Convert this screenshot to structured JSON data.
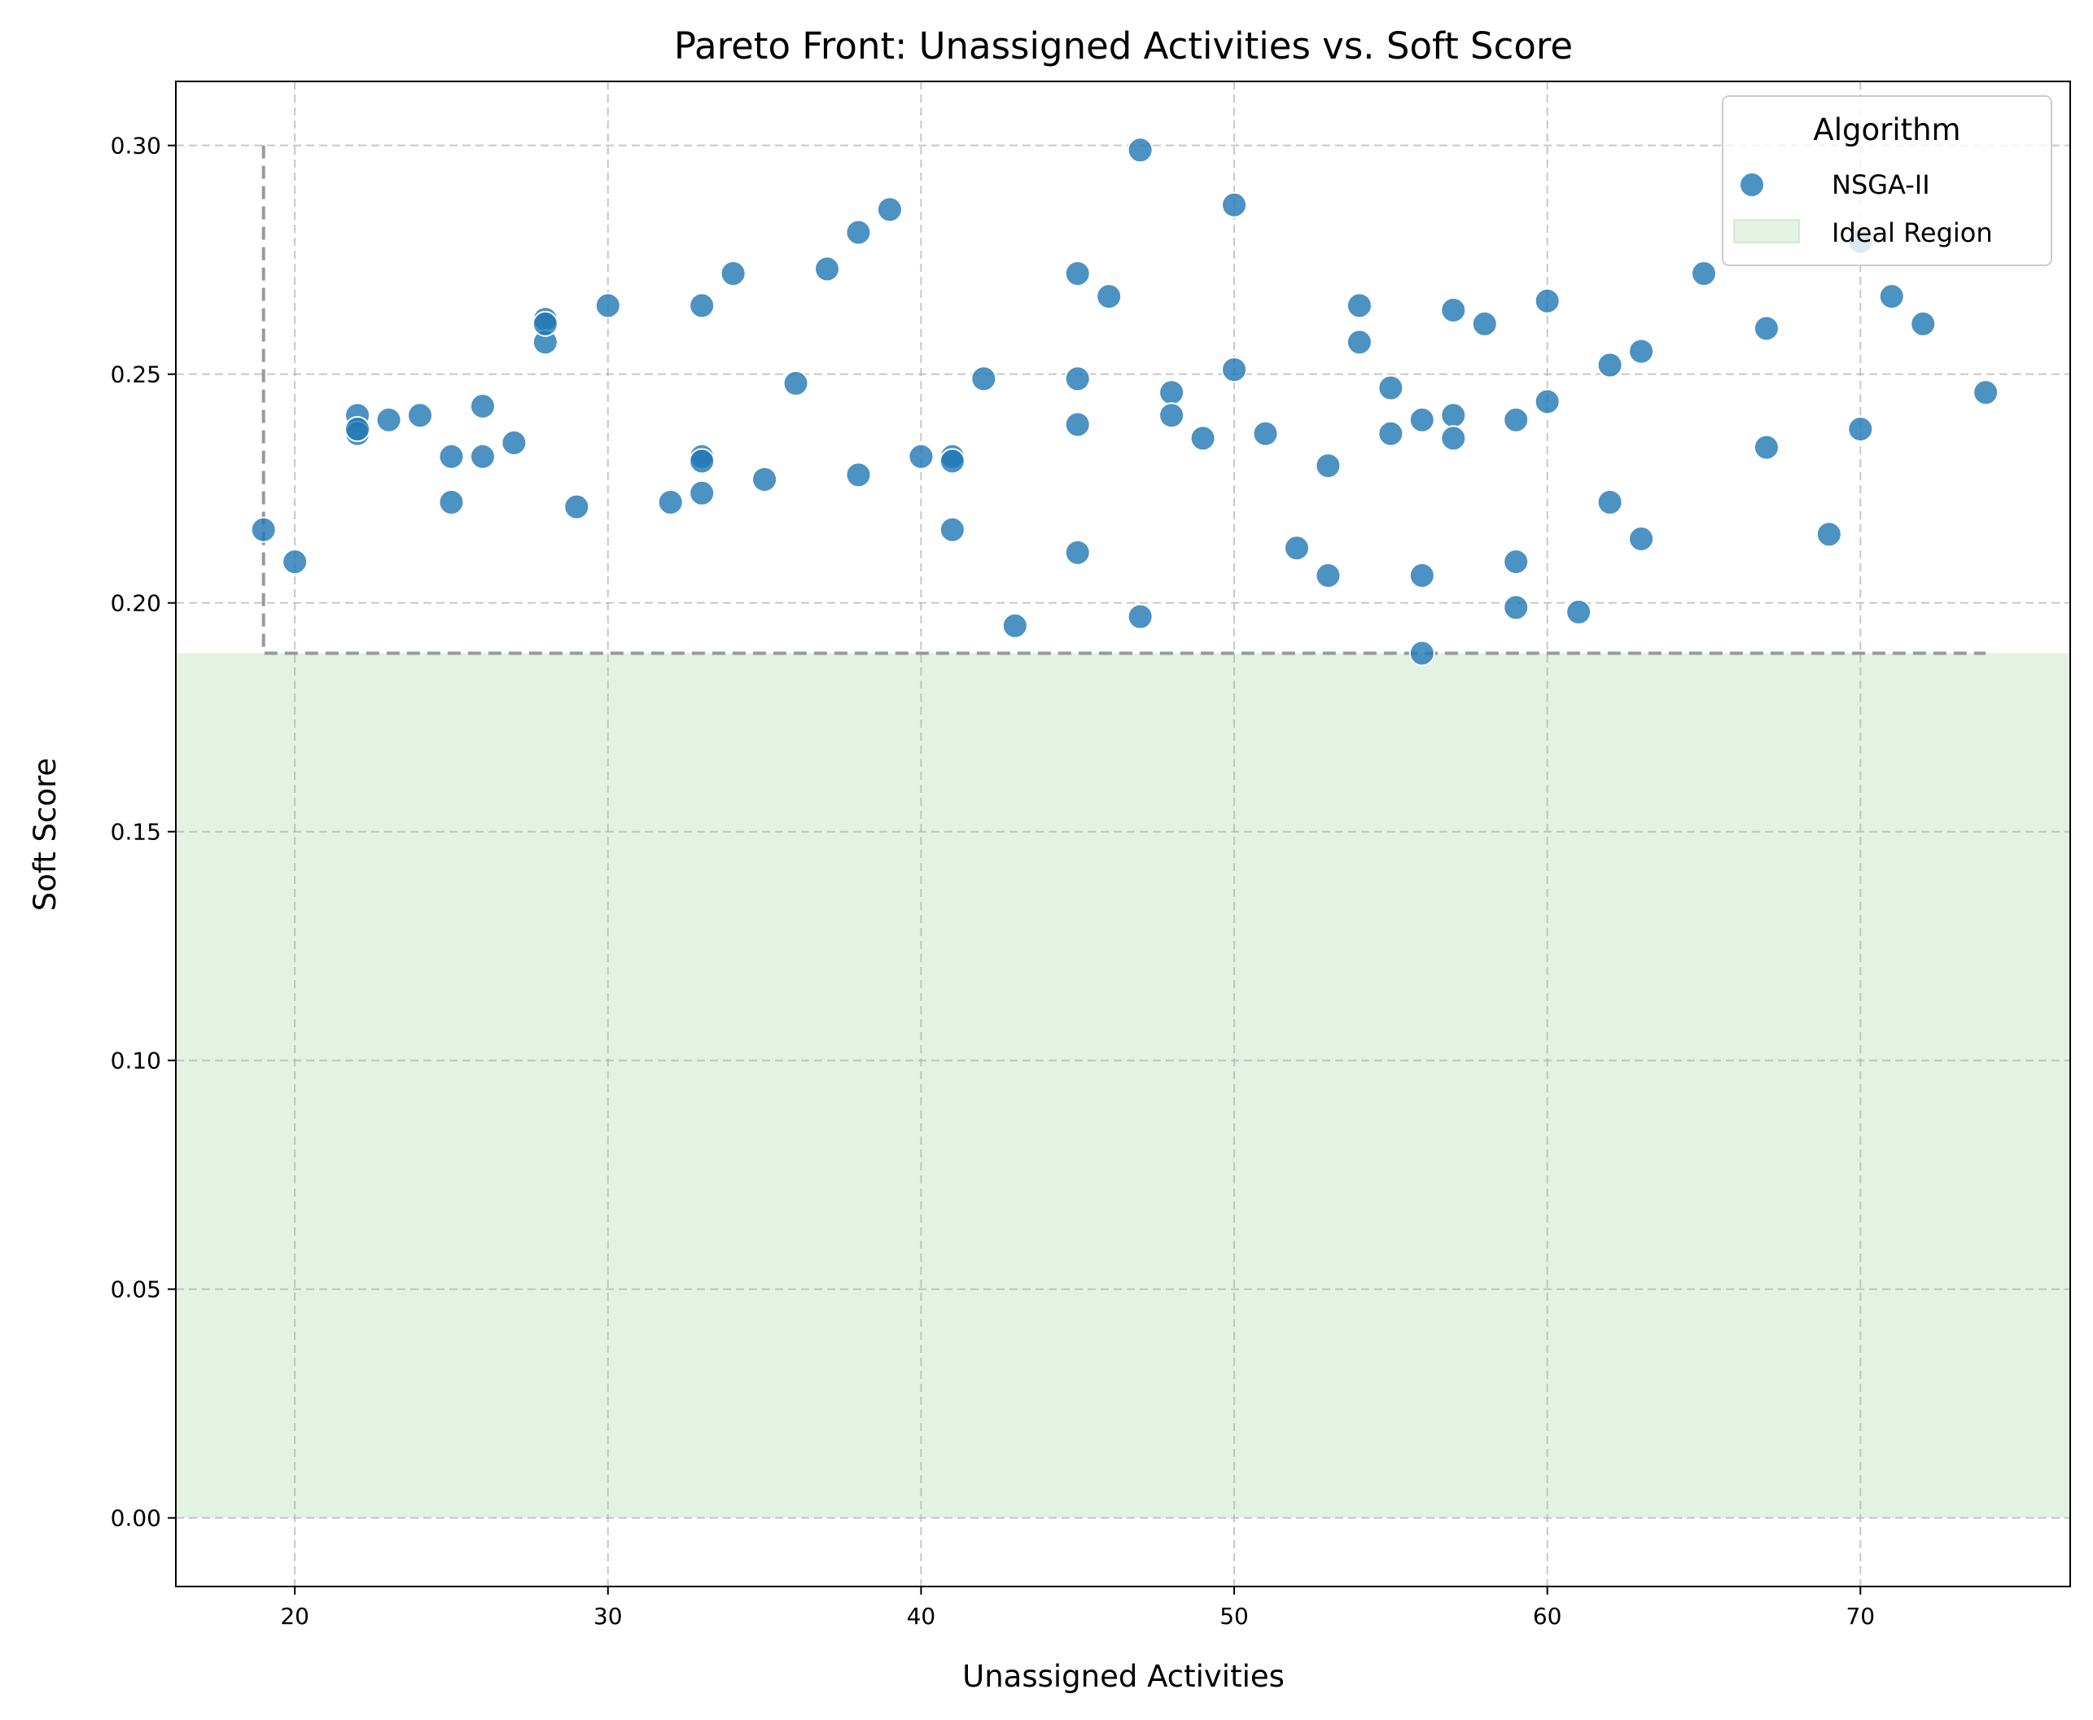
{
  "chart_data": {
    "type": "scatter",
    "title": "Pareto Front: Unassigned Activities vs. Soft Score",
    "xlabel": "Unassigned Activities",
    "ylabel": "Soft Score",
    "xlim": [
      16.2,
      76.7
    ],
    "ylim": [
      -0.015,
      0.314
    ],
    "xticks": [
      20,
      30,
      40,
      50,
      60,
      70
    ],
    "xtick_labels": [
      "20",
      "30",
      "40",
      "50",
      "60",
      "70"
    ],
    "yticks": [
      0.0,
      0.05,
      0.1,
      0.15,
      0.2,
      0.25,
      0.3
    ],
    "ytick_labels": [
      "0.00",
      "0.05",
      "0.10",
      "0.15",
      "0.20",
      "0.25",
      "0.30"
    ],
    "grid": true,
    "legend": {
      "title": "Algorithm",
      "placement": "top-right",
      "entries": [
        "NSGA-II",
        "Ideal Region"
      ]
    },
    "colors": {
      "points": "#1f77b4",
      "ideal_region": "#c8e6c8",
      "frontier": "#999999",
      "grid": "#b0b0b0"
    },
    "ideal_region": {
      "label": "Ideal Region",
      "y_from": 0.0,
      "y_to": 0.189
    },
    "frontier_line": {
      "x": [
        19,
        19,
        74
      ],
      "y": [
        0.3,
        0.189,
        0.189
      ]
    },
    "series": [
      {
        "name": "NSGA-II",
        "points": [
          [
            19,
            0.216
          ],
          [
            20,
            0.209
          ],
          [
            22,
            0.241
          ],
          [
            22,
            0.237
          ],
          [
            22,
            0.238
          ],
          [
            23,
            0.24
          ],
          [
            24,
            0.241
          ],
          [
            25,
            0.232
          ],
          [
            25,
            0.222
          ],
          [
            26,
            0.243
          ],
          [
            26,
            0.232
          ],
          [
            27,
            0.235
          ],
          [
            28,
            0.262
          ],
          [
            28,
            0.257
          ],
          [
            28,
            0.261
          ],
          [
            29,
            0.221
          ],
          [
            30,
            0.265
          ],
          [
            32,
            0.222
          ],
          [
            33,
            0.265
          ],
          [
            33,
            0.232
          ],
          [
            33,
            0.231
          ],
          [
            33,
            0.224
          ],
          [
            34,
            0.272
          ],
          [
            35,
            0.227
          ],
          [
            36,
            0.248
          ],
          [
            37,
            0.273
          ],
          [
            38,
            0.281
          ],
          [
            38,
            0.228
          ],
          [
            39,
            0.286
          ],
          [
            40,
            0.232
          ],
          [
            41,
            0.232
          ],
          [
            41,
            0.231
          ],
          [
            41,
            0.216
          ],
          [
            42,
            0.249
          ],
          [
            43,
            0.195
          ],
          [
            45,
            0.272
          ],
          [
            45,
            0.249
          ],
          [
            45,
            0.239
          ],
          [
            45,
            0.211
          ],
          [
            46,
            0.267
          ],
          [
            47,
            0.299
          ],
          [
            47,
            0.197
          ],
          [
            48,
            0.246
          ],
          [
            48,
            0.241
          ],
          [
            49,
            0.236
          ],
          [
            50,
            0.287
          ],
          [
            50,
            0.251
          ],
          [
            51,
            0.237
          ],
          [
            52,
            0.212
          ],
          [
            53,
            0.23
          ],
          [
            53,
            0.206
          ],
          [
            54,
            0.265
          ],
          [
            54,
            0.257
          ],
          [
            55,
            0.247
          ],
          [
            55,
            0.237
          ],
          [
            56,
            0.24
          ],
          [
            56,
            0.206
          ],
          [
            56,
            0.189
          ],
          [
            57,
            0.264
          ],
          [
            57,
            0.241
          ],
          [
            57,
            0.236
          ],
          [
            58,
            0.261
          ],
          [
            59,
            0.24
          ],
          [
            59,
            0.209
          ],
          [
            59,
            0.199
          ],
          [
            60,
            0.266
          ],
          [
            60,
            0.244
          ],
          [
            61,
            0.198
          ],
          [
            62,
            0.252
          ],
          [
            62,
            0.222
          ],
          [
            63,
            0.255
          ],
          [
            63,
            0.214
          ],
          [
            65,
            0.272
          ],
          [
            67,
            0.26
          ],
          [
            67,
            0.234
          ],
          [
            69,
            0.215
          ],
          [
            70,
            0.238
          ],
          [
            70,
            0.279
          ],
          [
            71,
            0.267
          ],
          [
            72,
            0.261
          ],
          [
            74,
            0.246
          ]
        ]
      }
    ]
  }
}
